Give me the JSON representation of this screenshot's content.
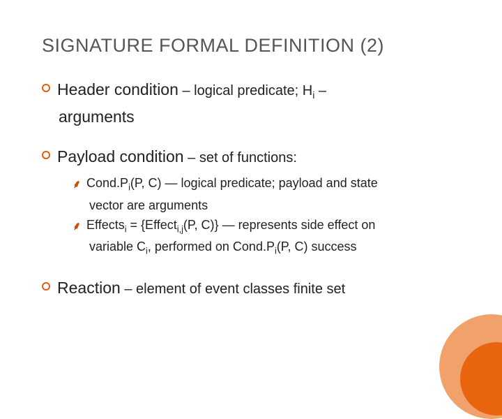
{
  "colors": {
    "title": "#555555",
    "body": "#222222",
    "accent_ring": "#e35c13",
    "accent_wave": "#c94f0a",
    "circle_outer": "#f1a26a",
    "circle_inner": "#e8640e",
    "background": "#ffffff"
  },
  "typography": {
    "title_fontsize": 27,
    "lead_fontsize": 23,
    "body_fontsize": 20,
    "sub_fontsize": 18,
    "font_family": "Arial"
  },
  "title": "SIGNATURE FORMAL DEFINITION (2)",
  "items": [
    {
      "lead": "Header condition",
      "rest_html": " – logical predicate; H<sub>i</sub> –",
      "cont": "arguments"
    },
    {
      "lead": "Payload condition",
      "rest_html": " – set of functions:",
      "subs": [
        {
          "line1_html": "Cond.P<sub>i</sub>(P, C) — logical predicate; payload and state",
          "line2_html": "vector are arguments"
        },
        {
          "line1_html": "Effects<sub>i</sub> = {Effect<sub>i,j</sub>(P, C)} — represents side effect on",
          "line2_html": "variable C<sub>i</sub>, performed on Cond.P<sub>i</sub>(P, C) success"
        }
      ]
    },
    {
      "lead": "Reaction",
      "rest_html": " – element of event classes finite set"
    }
  ]
}
